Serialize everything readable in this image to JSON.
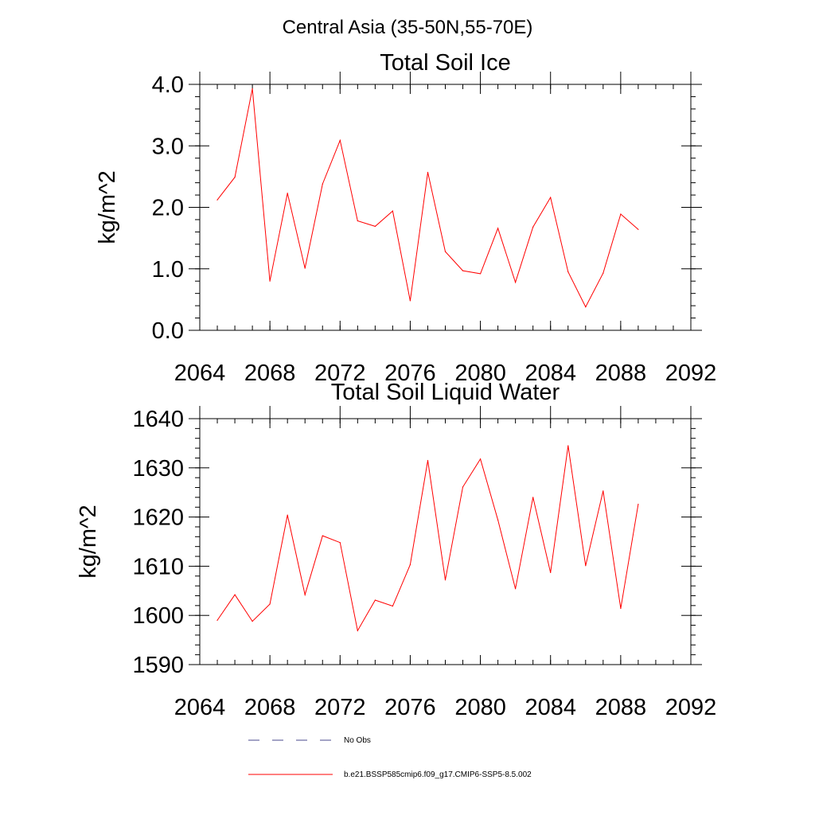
{
  "suptitle": "Central Asia (35-50N,55-70E)",
  "colors": {
    "model_line": "#ff0000",
    "obs_line": "#4a4a8c",
    "axis": "#000000"
  },
  "legend": {
    "obs_label": "No Obs",
    "model_label": "b.e21.BSSP585cmip6.f09_g17.CMIP6-SSP5-8.5.002"
  },
  "chart_data": [
    {
      "type": "line",
      "title": "Total Soil Ice",
      "xlabel": "",
      "ylabel": "kg/m^2",
      "xlim": [
        2064,
        2092
      ],
      "ylim": [
        0,
        4
      ],
      "x_ticks": [
        2064,
        2068,
        2072,
        2076,
        2080,
        2084,
        2088,
        2092
      ],
      "y_ticks": [
        "0.0",
        "1.0",
        "2.0",
        "3.0",
        "4.0"
      ],
      "x_minor_step": 1,
      "y_minor_step": 0.2,
      "grid": false,
      "x": [
        2065,
        2066,
        2067,
        2068,
        2069,
        2070,
        2071,
        2072,
        2073,
        2074,
        2075,
        2076,
        2077,
        2078,
        2079,
        2080,
        2081,
        2082,
        2083,
        2084,
        2085,
        2086,
        2087,
        2088,
        2089
      ],
      "series": [
        {
          "name": "b.e21.BSSP585cmip6.f09_g17.CMIP6-SSP5-8.5.002",
          "values": [
            2.12,
            2.49,
            3.93,
            0.8,
            2.23,
            1.01,
            2.38,
            3.09,
            1.78,
            1.69,
            1.94,
            0.48,
            2.57,
            1.28,
            0.97,
            0.92,
            1.66,
            0.78,
            1.68,
            2.16,
            0.95,
            0.38,
            0.93,
            1.89,
            1.64
          ]
        }
      ]
    },
    {
      "type": "line",
      "title": "Total Soil Liquid Water",
      "xlabel": "",
      "ylabel": "kg/m^2",
      "xlim": [
        2064,
        2092
      ],
      "ylim": [
        1590,
        1640
      ],
      "x_ticks": [
        2064,
        2068,
        2072,
        2076,
        2080,
        2084,
        2088,
        2092
      ],
      "y_ticks": [
        "1590",
        "1600",
        "1610",
        "1620",
        "1630",
        "1640"
      ],
      "x_minor_step": 1,
      "y_minor_step": 2,
      "grid": false,
      "x": [
        2065,
        2066,
        2067,
        2068,
        2069,
        2070,
        2071,
        2072,
        2073,
        2074,
        2075,
        2076,
        2077,
        2078,
        2079,
        2080,
        2081,
        2082,
        2083,
        2084,
        2085,
        2086,
        2087,
        2088,
        2089
      ],
      "series": [
        {
          "name": "b.e21.BSSP585cmip6.f09_g17.CMIP6-SSP5-8.5.002",
          "values": [
            1599.0,
            1604.2,
            1598.8,
            1602.3,
            1620.4,
            1604.2,
            1616.2,
            1614.8,
            1596.9,
            1603.1,
            1601.9,
            1610.3,
            1631.5,
            1607.2,
            1626.1,
            1631.8,
            1619.4,
            1605.4,
            1624.0,
            1608.7,
            1634.5,
            1610.1,
            1625.3,
            1601.4,
            1622.6
          ]
        }
      ]
    }
  ]
}
